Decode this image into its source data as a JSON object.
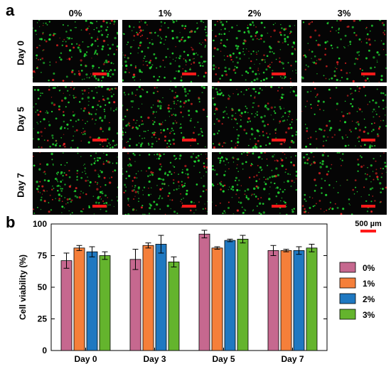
{
  "panel_a": {
    "letter": "a",
    "columns": [
      "0%",
      "1%",
      "2%",
      "3%"
    ],
    "rows": [
      "Day 0",
      "Day 5",
      "Day 7"
    ],
    "scale_label": "500 µm"
  },
  "panel_b": {
    "letter": "b"
  },
  "colors": {
    "0%": "#c6688f",
    "1%": "#f57f3a",
    "2%": "#1f78c1",
    "3%": "#64b42d",
    "live_cell": "#22dd33",
    "dead_cell": "#dd2222",
    "scale_bar": "#ff1a1a"
  },
  "chart_data": {
    "type": "bar",
    "categories": [
      "Day 0",
      "Day 3",
      "Day 5",
      "Day 7"
    ],
    "series": [
      {
        "name": "0%",
        "values": [
          71,
          72,
          92,
          79
        ],
        "errors": [
          6,
          8,
          3,
          4
        ]
      },
      {
        "name": "1%",
        "values": [
          81,
          83,
          81,
          79
        ],
        "errors": [
          2,
          2,
          1,
          1
        ]
      },
      {
        "name": "2%",
        "values": [
          78,
          84,
          87,
          79
        ],
        "errors": [
          4,
          7,
          1,
          3
        ]
      },
      {
        "name": "3%",
        "values": [
          75,
          70,
          88,
          81
        ],
        "errors": [
          3,
          4,
          3,
          3
        ]
      }
    ],
    "title": "",
    "xlabel": "",
    "ylabel": "Cell viability (%)",
    "ylim": [
      0,
      100
    ],
    "yticks": [
      "0",
      "25",
      "50",
      "75",
      "100"
    ],
    "grid": false,
    "legend": "right"
  }
}
